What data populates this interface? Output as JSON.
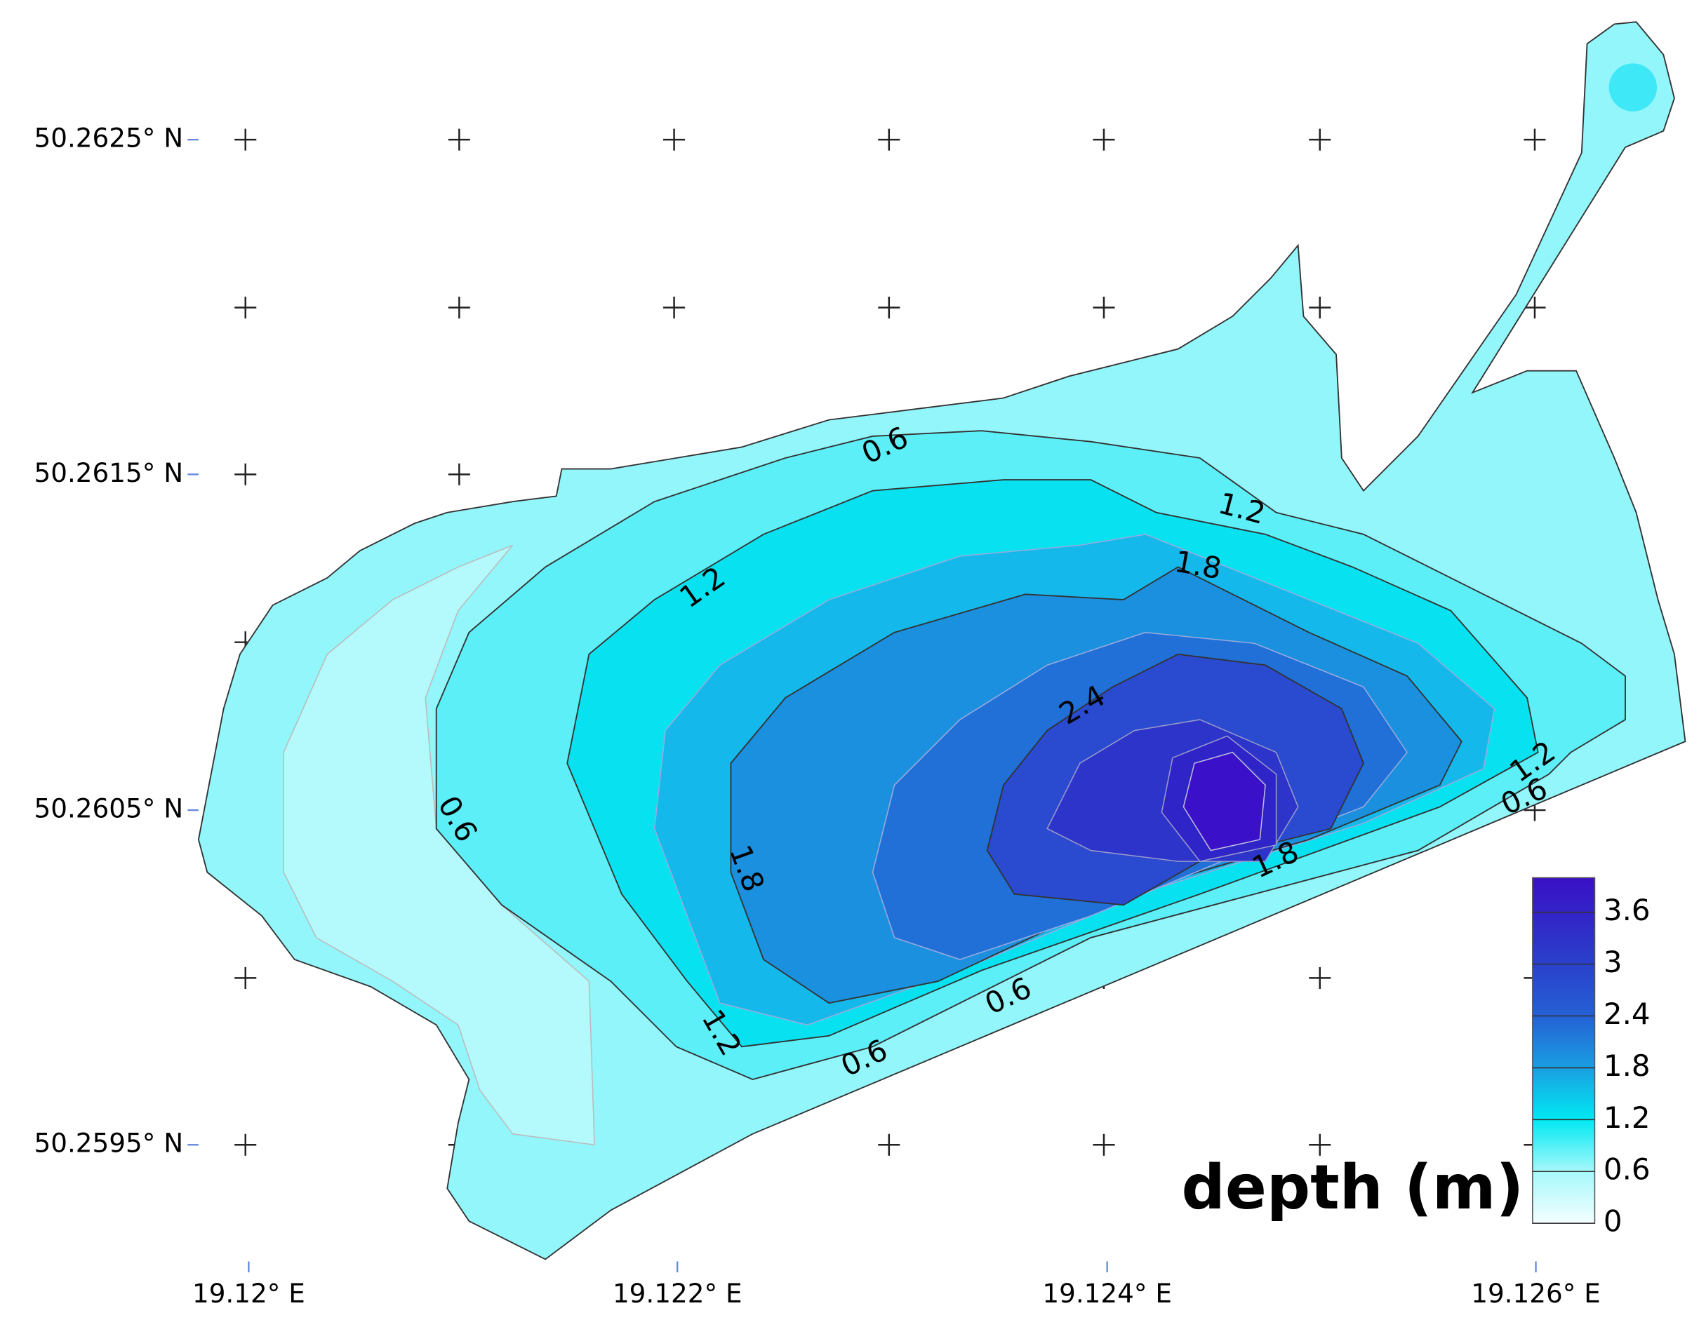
{
  "map": {
    "x_labels": [
      "19.12° E",
      "19.122° E",
      "19.124° E",
      "19.126° E"
    ],
    "y_labels": [
      "50.2625° N",
      "50.2615° N",
      "50.2605° N",
      "50.2595° N"
    ],
    "contour_labels": [
      "0.6",
      "1.2",
      "1.8",
      "1.2",
      "2.4",
      "0.6",
      "1.8",
      "1.2",
      "0.6",
      "1.8",
      "0.6",
      "1.2",
      "0.6"
    ],
    "colorbar": {
      "title": "depth (m)",
      "range": [
        0,
        4
      ],
      "ticks": [
        0,
        0.6,
        1.2,
        1.8,
        2.4,
        3,
        3.6
      ]
    }
  }
}
